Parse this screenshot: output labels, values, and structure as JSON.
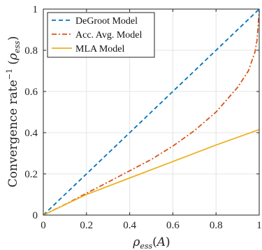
{
  "chart_data": {
    "type": "line",
    "xlabel": "ρ_ess(A)",
    "ylabel": "Convergence rate^−1 (ρ_ess)",
    "xlim": [
      0,
      1
    ],
    "ylim": [
      0,
      1
    ],
    "xticks": [
      "0",
      "0.2",
      "0.4",
      "0.6",
      "0.8",
      "1"
    ],
    "yticks": [
      "0",
      "0.2",
      "0.4",
      "0.6",
      "0.8",
      "1"
    ],
    "grid": true,
    "legend_position": "top-left",
    "series": [
      {
        "name": "DeGroot Model",
        "color": "#0072BD",
        "style": "dashed",
        "x": [
          0,
          0.2,
          0.4,
          0.6,
          0.8,
          1.0
        ],
        "y": [
          0,
          0.2,
          0.4,
          0.6,
          0.8,
          1.0
        ]
      },
      {
        "name": "Acc. Avg. Model",
        "color": "#D95319",
        "style": "dashdot",
        "x": [
          0,
          0.1,
          0.2,
          0.3,
          0.4,
          0.5,
          0.6,
          0.7,
          0.8,
          0.9,
          0.95,
          0.98,
          0.99,
          1.0
        ],
        "y": [
          0,
          0.051,
          0.106,
          0.16,
          0.215,
          0.27,
          0.335,
          0.41,
          0.5,
          0.62,
          0.7,
          0.79,
          0.85,
          0.99
        ]
      },
      {
        "name": "MLA Model",
        "color": "#EDB120",
        "style": "solid",
        "x": [
          0,
          0.2,
          0.4,
          0.6,
          0.8,
          1.0
        ],
        "y": [
          0,
          0.1,
          0.18,
          0.26,
          0.34,
          0.415
        ]
      }
    ]
  }
}
